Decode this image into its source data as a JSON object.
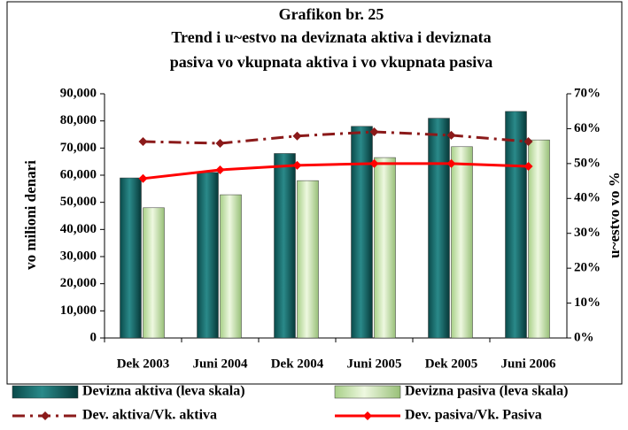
{
  "chart_data": {
    "type": "bar",
    "title": [
      "Grafikon br. 25",
      "Trend i u~estvo na deviznata aktiva i deviznata",
      "pasiva vo vkupnata aktiva i vo vkupnata pasiva"
    ],
    "y_label": "vo milioni denari",
    "y2_label": "u~estvo vo %",
    "categories": [
      "Dek 2003",
      "Juni 2004",
      "Dek 2004",
      "Juni 2005",
      "Dek 2005",
      "Juni 2006"
    ],
    "series": [
      {
        "name": "Devizna aktiva (leva skala)",
        "type": "bar",
        "color": "#0b5e5e",
        "values": [
          59000,
          61000,
          68000,
          78000,
          81000,
          83500
        ]
      },
      {
        "name": "Devizna pasiva (leva skala)",
        "type": "bar",
        "color": "#c6e6a6",
        "values": [
          48000,
          52800,
          58000,
          66500,
          70500,
          73000
        ]
      },
      {
        "name": "Dev. aktiva/Vk. aktiva",
        "type": "line",
        "axis": "y2",
        "color": "#8b1a1a",
        "dashed": true,
        "values": [
          56.3,
          55.8,
          57.9,
          59.1,
          58.1,
          56.3
        ]
      },
      {
        "name": "Dev. pasiva/Vk. Pasiva",
        "type": "line",
        "axis": "y2",
        "color": "#ff0000",
        "dashed": false,
        "values": [
          45.7,
          48.2,
          49.5,
          50,
          50,
          49.2
        ]
      }
    ],
    "ylim": [
      0,
      90000
    ],
    "yticks": [
      0,
      {
        "value": 10000,
        "label": "10,000"
      },
      {
        "value": 20000,
        "label": "20,000"
      },
      {
        "value": 30000,
        "label": "30,000"
      },
      {
        "value": 40000,
        "label": "40,000"
      },
      {
        "value": 50000,
        "label": "50,000"
      },
      {
        "value": 60000,
        "label": "60,000"
      },
      {
        "value": 70000,
        "label": "70,000"
      },
      {
        "value": 80000,
        "label": "80,000"
      },
      {
        "value": 90000,
        "label": "90,000"
      }
    ],
    "y2lim": [
      0,
      70
    ],
    "y2ticks": [
      {
        "value": 0,
        "label": "0%"
      },
      {
        "value": 10,
        "label": "10%"
      },
      {
        "value": 20,
        "label": "20%"
      },
      {
        "value": 30,
        "label": "30%"
      },
      {
        "value": 40,
        "label": "40%"
      },
      {
        "value": 50,
        "label": "50%"
      },
      {
        "value": 60,
        "label": "60%"
      },
      {
        "value": 70,
        "label": "70%"
      }
    ],
    "legend": "bottom",
    "grid": false
  }
}
